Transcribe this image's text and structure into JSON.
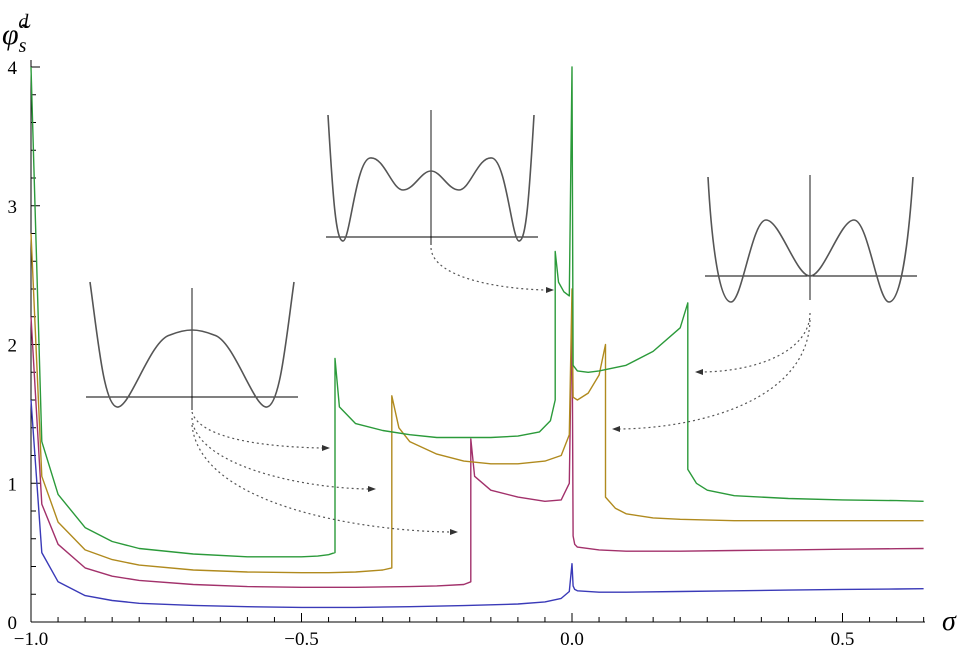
{
  "chart_data": {
    "type": "line",
    "ylabel_base": "φ̃",
    "ylabel_sub": "s",
    "ylabel_sup": "d",
    "xlabel": "σ",
    "xlim": [
      -1.0,
      0.65
    ],
    "ylim": [
      0,
      4
    ],
    "x_ticks": [
      {
        "value": -1.0,
        "label": "−1.0"
      },
      {
        "value": -0.5,
        "label": "−0.5"
      },
      {
        "value": 0.0,
        "label": "0.0"
      },
      {
        "value": 0.5,
        "label": "0.5"
      }
    ],
    "y_ticks": [
      {
        "value": 0,
        "label": "0"
      },
      {
        "value": 1,
        "label": "1"
      },
      {
        "value": 2,
        "label": "2"
      },
      {
        "value": 3,
        "label": "3"
      },
      {
        "value": 4,
        "label": "4"
      }
    ],
    "series": [
      {
        "color": "#3a3ab8",
        "x": [
          -1.0,
          -0.98,
          -0.95,
          -0.9,
          -0.85,
          -0.8,
          -0.7,
          -0.6,
          -0.5,
          -0.4,
          -0.3,
          -0.2,
          -0.1,
          -0.05,
          -0.02,
          -0.005,
          0.0,
          0.002,
          0.005,
          0.01,
          0.05,
          0.1,
          0.2,
          0.3,
          0.4,
          0.5,
          0.6,
          0.65
        ],
        "y": [
          1.6,
          0.5,
          0.29,
          0.19,
          0.155,
          0.135,
          0.12,
          0.11,
          0.105,
          0.105,
          0.11,
          0.118,
          0.13,
          0.145,
          0.17,
          0.22,
          0.42,
          0.26,
          0.235,
          0.225,
          0.215,
          0.215,
          0.22,
          0.225,
          0.23,
          0.235,
          0.238,
          0.24
        ]
      },
      {
        "color": "#a2316b",
        "x": [
          -1.0,
          -0.98,
          -0.95,
          -0.9,
          -0.85,
          -0.8,
          -0.7,
          -0.6,
          -0.5,
          -0.4,
          -0.3,
          -0.25,
          -0.2,
          -0.187,
          -0.187,
          -0.18,
          -0.15,
          -0.1,
          -0.05,
          -0.02,
          -0.005,
          0.0,
          0.002,
          0.005,
          0.01,
          0.05,
          0.1,
          0.2,
          0.3,
          0.4,
          0.5,
          0.6,
          0.65
        ],
        "y": [
          2.2,
          0.85,
          0.56,
          0.39,
          0.33,
          0.3,
          0.27,
          0.255,
          0.25,
          0.25,
          0.255,
          0.26,
          0.27,
          0.29,
          1.32,
          1.05,
          0.95,
          0.9,
          0.87,
          0.88,
          1.0,
          2.3,
          0.62,
          0.56,
          0.54,
          0.52,
          0.51,
          0.51,
          0.515,
          0.52,
          0.525,
          0.528,
          0.53
        ]
      },
      {
        "color": "#b08a1e",
        "x": [
          -1.0,
          -0.98,
          -0.95,
          -0.9,
          -0.85,
          -0.8,
          -0.7,
          -0.6,
          -0.5,
          -0.45,
          -0.4,
          -0.35,
          -0.333,
          -0.333,
          -0.32,
          -0.3,
          -0.25,
          -0.2,
          -0.15,
          -0.1,
          -0.05,
          -0.02,
          -0.005,
          0.0,
          0.002,
          0.01,
          0.03,
          0.05,
          0.062,
          0.062,
          0.08,
          0.1,
          0.15,
          0.2,
          0.3,
          0.4,
          0.5,
          0.6,
          0.65
        ],
        "y": [
          2.8,
          1.05,
          0.72,
          0.52,
          0.45,
          0.41,
          0.375,
          0.36,
          0.355,
          0.355,
          0.36,
          0.375,
          0.39,
          1.63,
          1.4,
          1.3,
          1.21,
          1.16,
          1.14,
          1.14,
          1.16,
          1.2,
          1.35,
          2.4,
          1.62,
          1.6,
          1.65,
          1.78,
          2.0,
          0.9,
          0.82,
          0.78,
          0.75,
          0.74,
          0.73,
          0.73,
          0.73,
          0.73,
          0.73
        ]
      },
      {
        "color": "#2b9a3a",
        "x": [
          -1.0,
          -0.98,
          -0.95,
          -0.9,
          -0.85,
          -0.8,
          -0.7,
          -0.6,
          -0.5,
          -0.47,
          -0.45,
          -0.438,
          -0.438,
          -0.43,
          -0.4,
          -0.35,
          -0.3,
          -0.25,
          -0.2,
          -0.15,
          -0.1,
          -0.06,
          -0.04,
          -0.031,
          -0.031,
          -0.025,
          -0.015,
          -0.005,
          0.0,
          0.002,
          0.01,
          0.03,
          0.05,
          0.1,
          0.15,
          0.2,
          0.214,
          0.214,
          0.23,
          0.25,
          0.3,
          0.4,
          0.5,
          0.6,
          0.65
        ],
        "y": [
          4.0,
          1.3,
          0.92,
          0.68,
          0.58,
          0.53,
          0.49,
          0.47,
          0.47,
          0.475,
          0.485,
          0.5,
          1.9,
          1.55,
          1.43,
          1.38,
          1.35,
          1.33,
          1.33,
          1.33,
          1.34,
          1.37,
          1.45,
          1.6,
          2.67,
          2.45,
          2.38,
          2.35,
          4.0,
          1.85,
          1.81,
          1.8,
          1.81,
          1.85,
          1.95,
          2.12,
          2.3,
          1.1,
          1.0,
          0.95,
          0.91,
          0.89,
          0.88,
          0.875,
          0.87
        ]
      }
    ]
  }
}
